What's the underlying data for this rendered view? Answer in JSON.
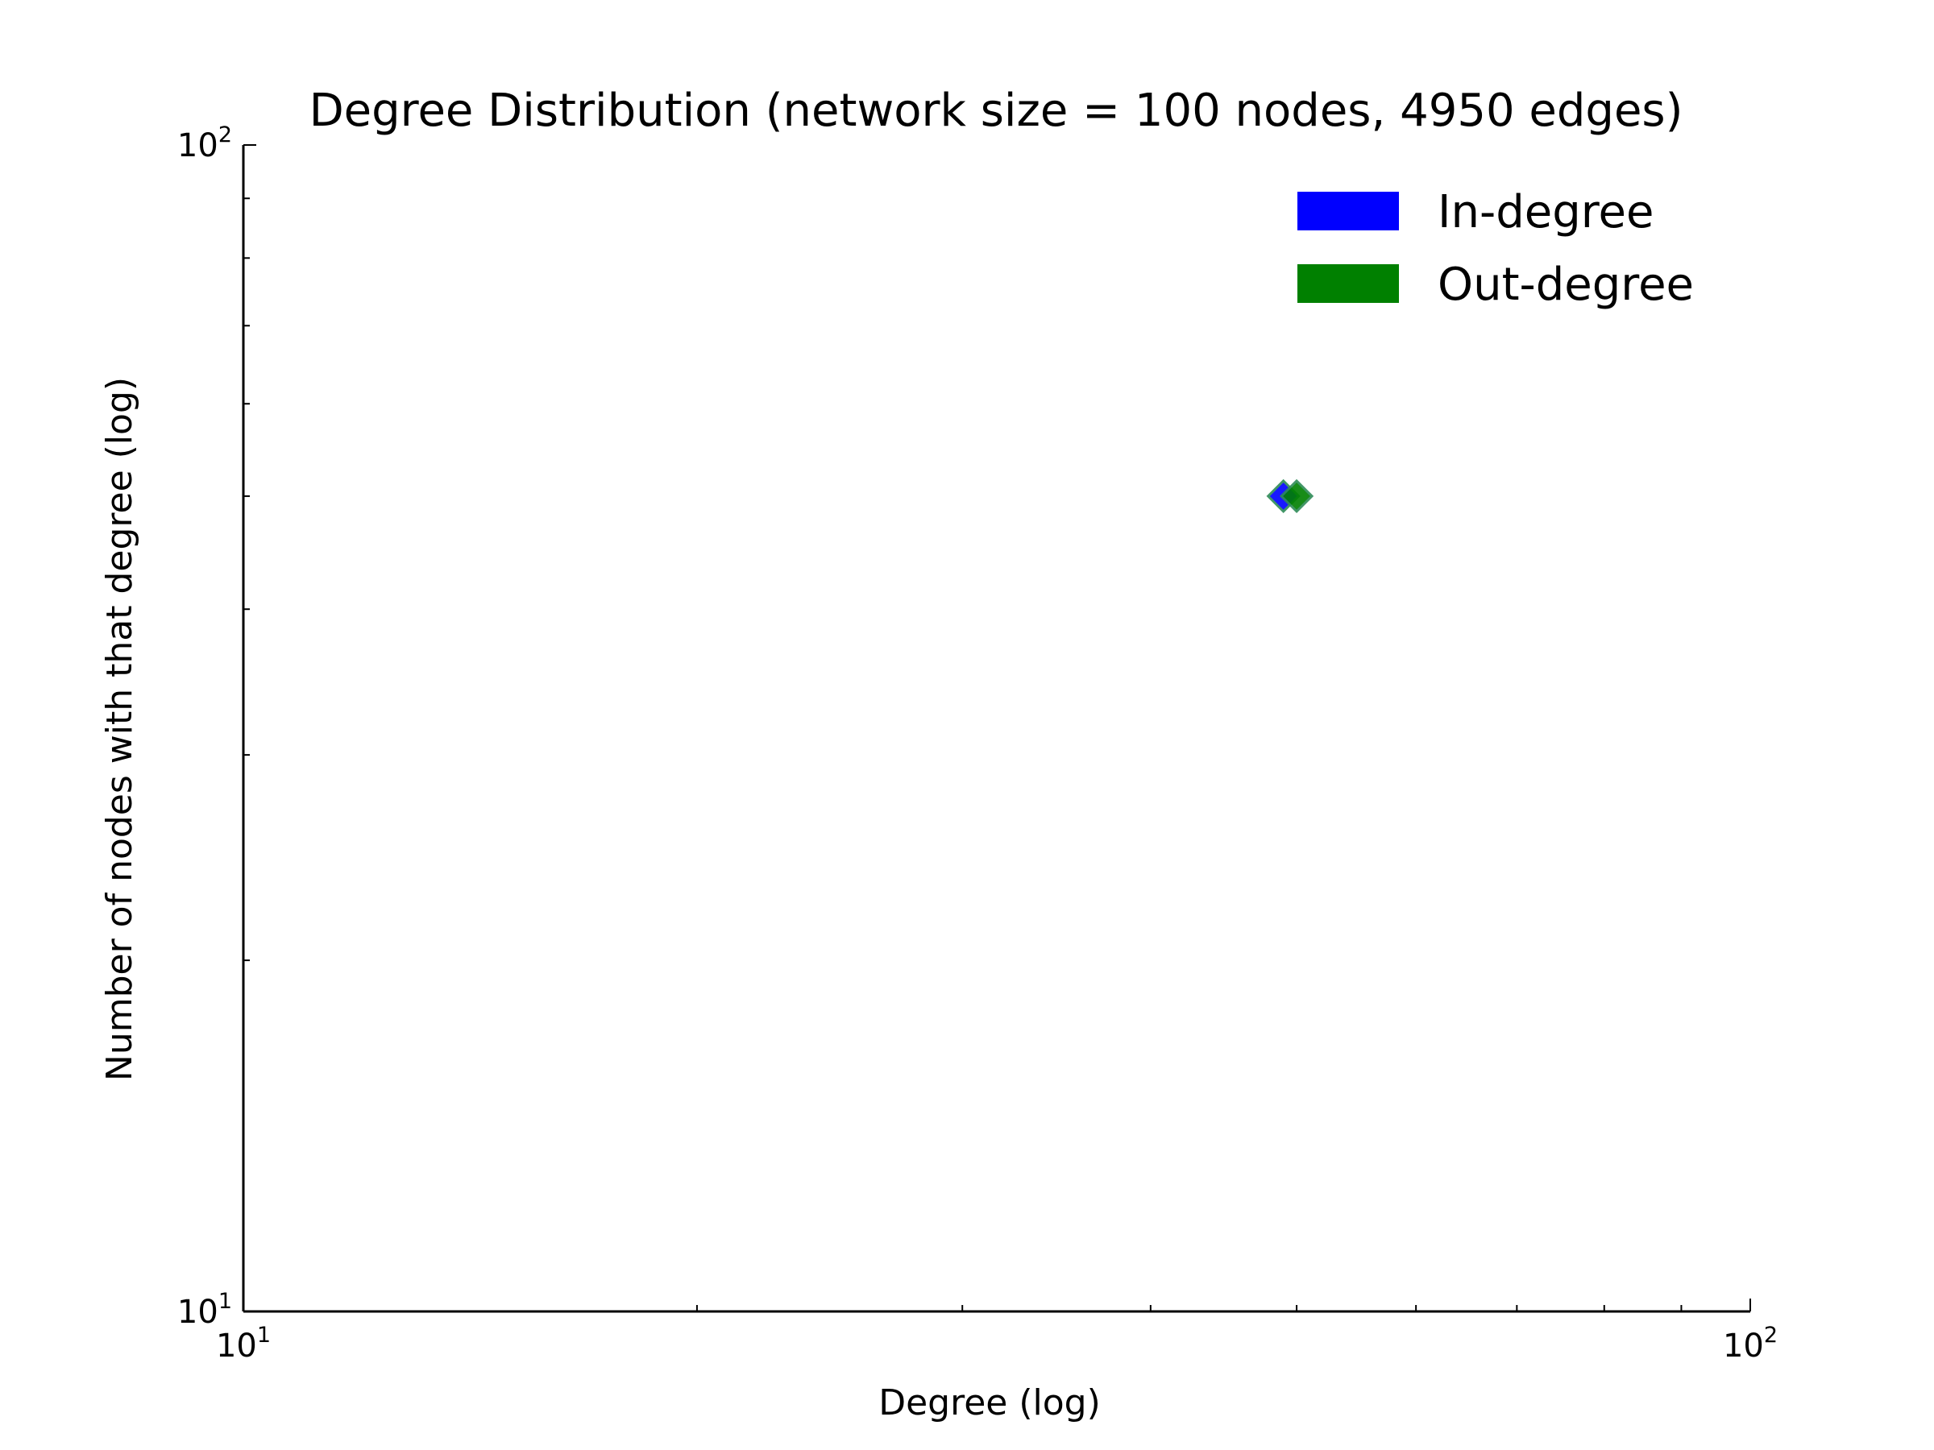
{
  "chart_data": {
    "type": "scatter",
    "title": "Degree Distribution (network size = 100 nodes, 4950 edges)",
    "xlabel": "Degree (log)",
    "ylabel": "Number of nodes with that degree (log)",
    "xscale": "log",
    "yscale": "log",
    "xlim": [
      10,
      100
    ],
    "ylim": [
      10,
      100
    ],
    "x_ticks": [
      {
        "value": 10,
        "base": "10",
        "exp": "1"
      },
      {
        "value": 100,
        "base": "10",
        "exp": "2"
      }
    ],
    "y_ticks": [
      {
        "value": 10,
        "base": "10",
        "exp": "1"
      },
      {
        "value": 100,
        "base": "10",
        "exp": "2"
      }
    ],
    "grid": false,
    "legend_position": "top-right",
    "series": [
      {
        "name": "In-degree",
        "color": "#0000ff",
        "marker": "diamond",
        "points": [
          {
            "x": 49,
            "y": 50
          }
        ]
      },
      {
        "name": "Out-degree",
        "color": "#008000",
        "marker": "diamond",
        "points": [
          {
            "x": 50,
            "y": 50
          }
        ]
      }
    ]
  }
}
